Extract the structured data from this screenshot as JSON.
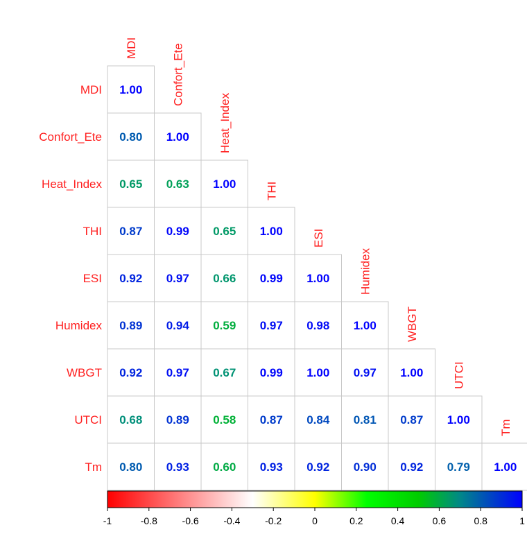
{
  "chart_data": {
    "type": "heatmap",
    "subtype": "correlation-matrix-lower-triangle",
    "variables": [
      "MDI",
      "Confort_Ete",
      "Heat_Index",
      "THI",
      "ESI",
      "Humidex",
      "WBGT",
      "UTCI",
      "Tm"
    ],
    "matrix": [
      [
        1.0
      ],
      [
        0.8,
        1.0
      ],
      [
        0.65,
        0.63,
        1.0
      ],
      [
        0.87,
        0.99,
        0.65,
        1.0
      ],
      [
        0.92,
        0.97,
        0.66,
        0.99,
        1.0
      ],
      [
        0.89,
        0.94,
        0.59,
        0.97,
        0.98,
        1.0
      ],
      [
        0.92,
        0.97,
        0.67,
        0.99,
        1.0,
        0.97,
        1.0
      ],
      [
        0.68,
        0.89,
        0.58,
        0.87,
        0.84,
        0.81,
        0.87,
        1.0
      ],
      [
        0.8,
        0.93,
        0.6,
        0.93,
        0.92,
        0.9,
        0.92,
        0.79,
        1.0
      ]
    ],
    "value_format": "2 decimals",
    "colorbar": {
      "range": [
        -1,
        1
      ],
      "ticks": [
        "-1",
        "-0.8",
        "-0.6",
        "-0.4",
        "-0.2",
        "0",
        "0.2",
        "0.4",
        "0.6",
        "0.8",
        "1"
      ],
      "stops": [
        {
          "v": -1.0,
          "color": "#ff0000"
        },
        {
          "v": -0.3,
          "color": "#ffffff"
        },
        {
          "v": 0.0,
          "color": "#ffff00"
        },
        {
          "v": 0.25,
          "color": "#00ff00"
        },
        {
          "v": 0.5,
          "color": "#00cc00"
        },
        {
          "v": 0.7,
          "color": "#008888"
        },
        {
          "v": 1.0,
          "color": "#0000ff"
        }
      ]
    },
    "label_color": "#ff2020",
    "grid_color": "#c8c8c8"
  }
}
